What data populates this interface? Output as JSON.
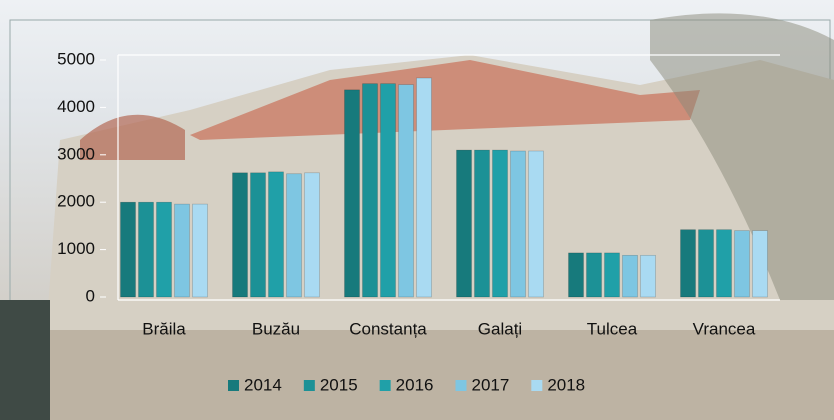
{
  "chart_data": {
    "type": "bar",
    "categories": [
      "Brăila",
      "Buzău",
      "Constanța",
      "Galați",
      "Tulcea",
      "Vrancea"
    ],
    "series": [
      {
        "name": "2014",
        "color": "#177a7c",
        "values": [
          2000,
          2620,
          4370,
          3100,
          930,
          1420
        ]
      },
      {
        "name": "2015",
        "color": "#1c9196",
        "values": [
          2000,
          2620,
          4500,
          3100,
          930,
          1420
        ]
      },
      {
        "name": "2016",
        "color": "#20a0a8",
        "values": [
          2000,
          2640,
          4500,
          3100,
          930,
          1420
        ]
      },
      {
        "name": "2017",
        "color": "#7ec6e2",
        "values": [
          1960,
          2600,
          4480,
          3080,
          880,
          1400
        ]
      },
      {
        "name": "2018",
        "color": "#a9daf2",
        "values": [
          1960,
          2620,
          4620,
          3080,
          880,
          1400
        ]
      }
    ],
    "ylim": [
      0,
      5000
    ],
    "yticks": [
      0,
      1000,
      2000,
      3000,
      4000,
      5000
    ],
    "grid": false,
    "legend": "bottom"
  }
}
